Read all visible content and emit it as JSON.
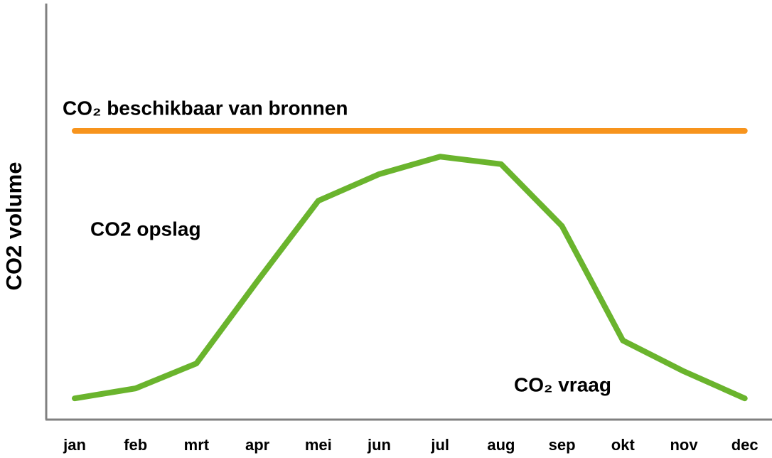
{
  "chart_data": {
    "type": "line",
    "ylabel": "CO2 volume",
    "categories": [
      "jan",
      "feb",
      "mrt",
      "apr",
      "mei",
      "jun",
      "jul",
      "aug",
      "sep",
      "okt",
      "nov",
      "dec"
    ],
    "series": [
      {
        "color": "#f7941d",
        "values": [
          69.4,
          69.4,
          69.4,
          69.4,
          69.4,
          69.4,
          69.4,
          69.4,
          69.4,
          69.4,
          69.4,
          69.4
        ]
      },
      {
        "color": "#6ab42d",
        "values": [
          5.1,
          7.5,
          13.5,
          33.3,
          52.6,
          59,
          63.2,
          61.4,
          46.5,
          19,
          11.6,
          5.1
        ]
      }
    ],
    "ylim": [
      0,
      100
    ],
    "annotations": [
      "CO₂ beschikbaar van bronnen",
      "CO2 opslag",
      "CO₂ vraag"
    ]
  }
}
